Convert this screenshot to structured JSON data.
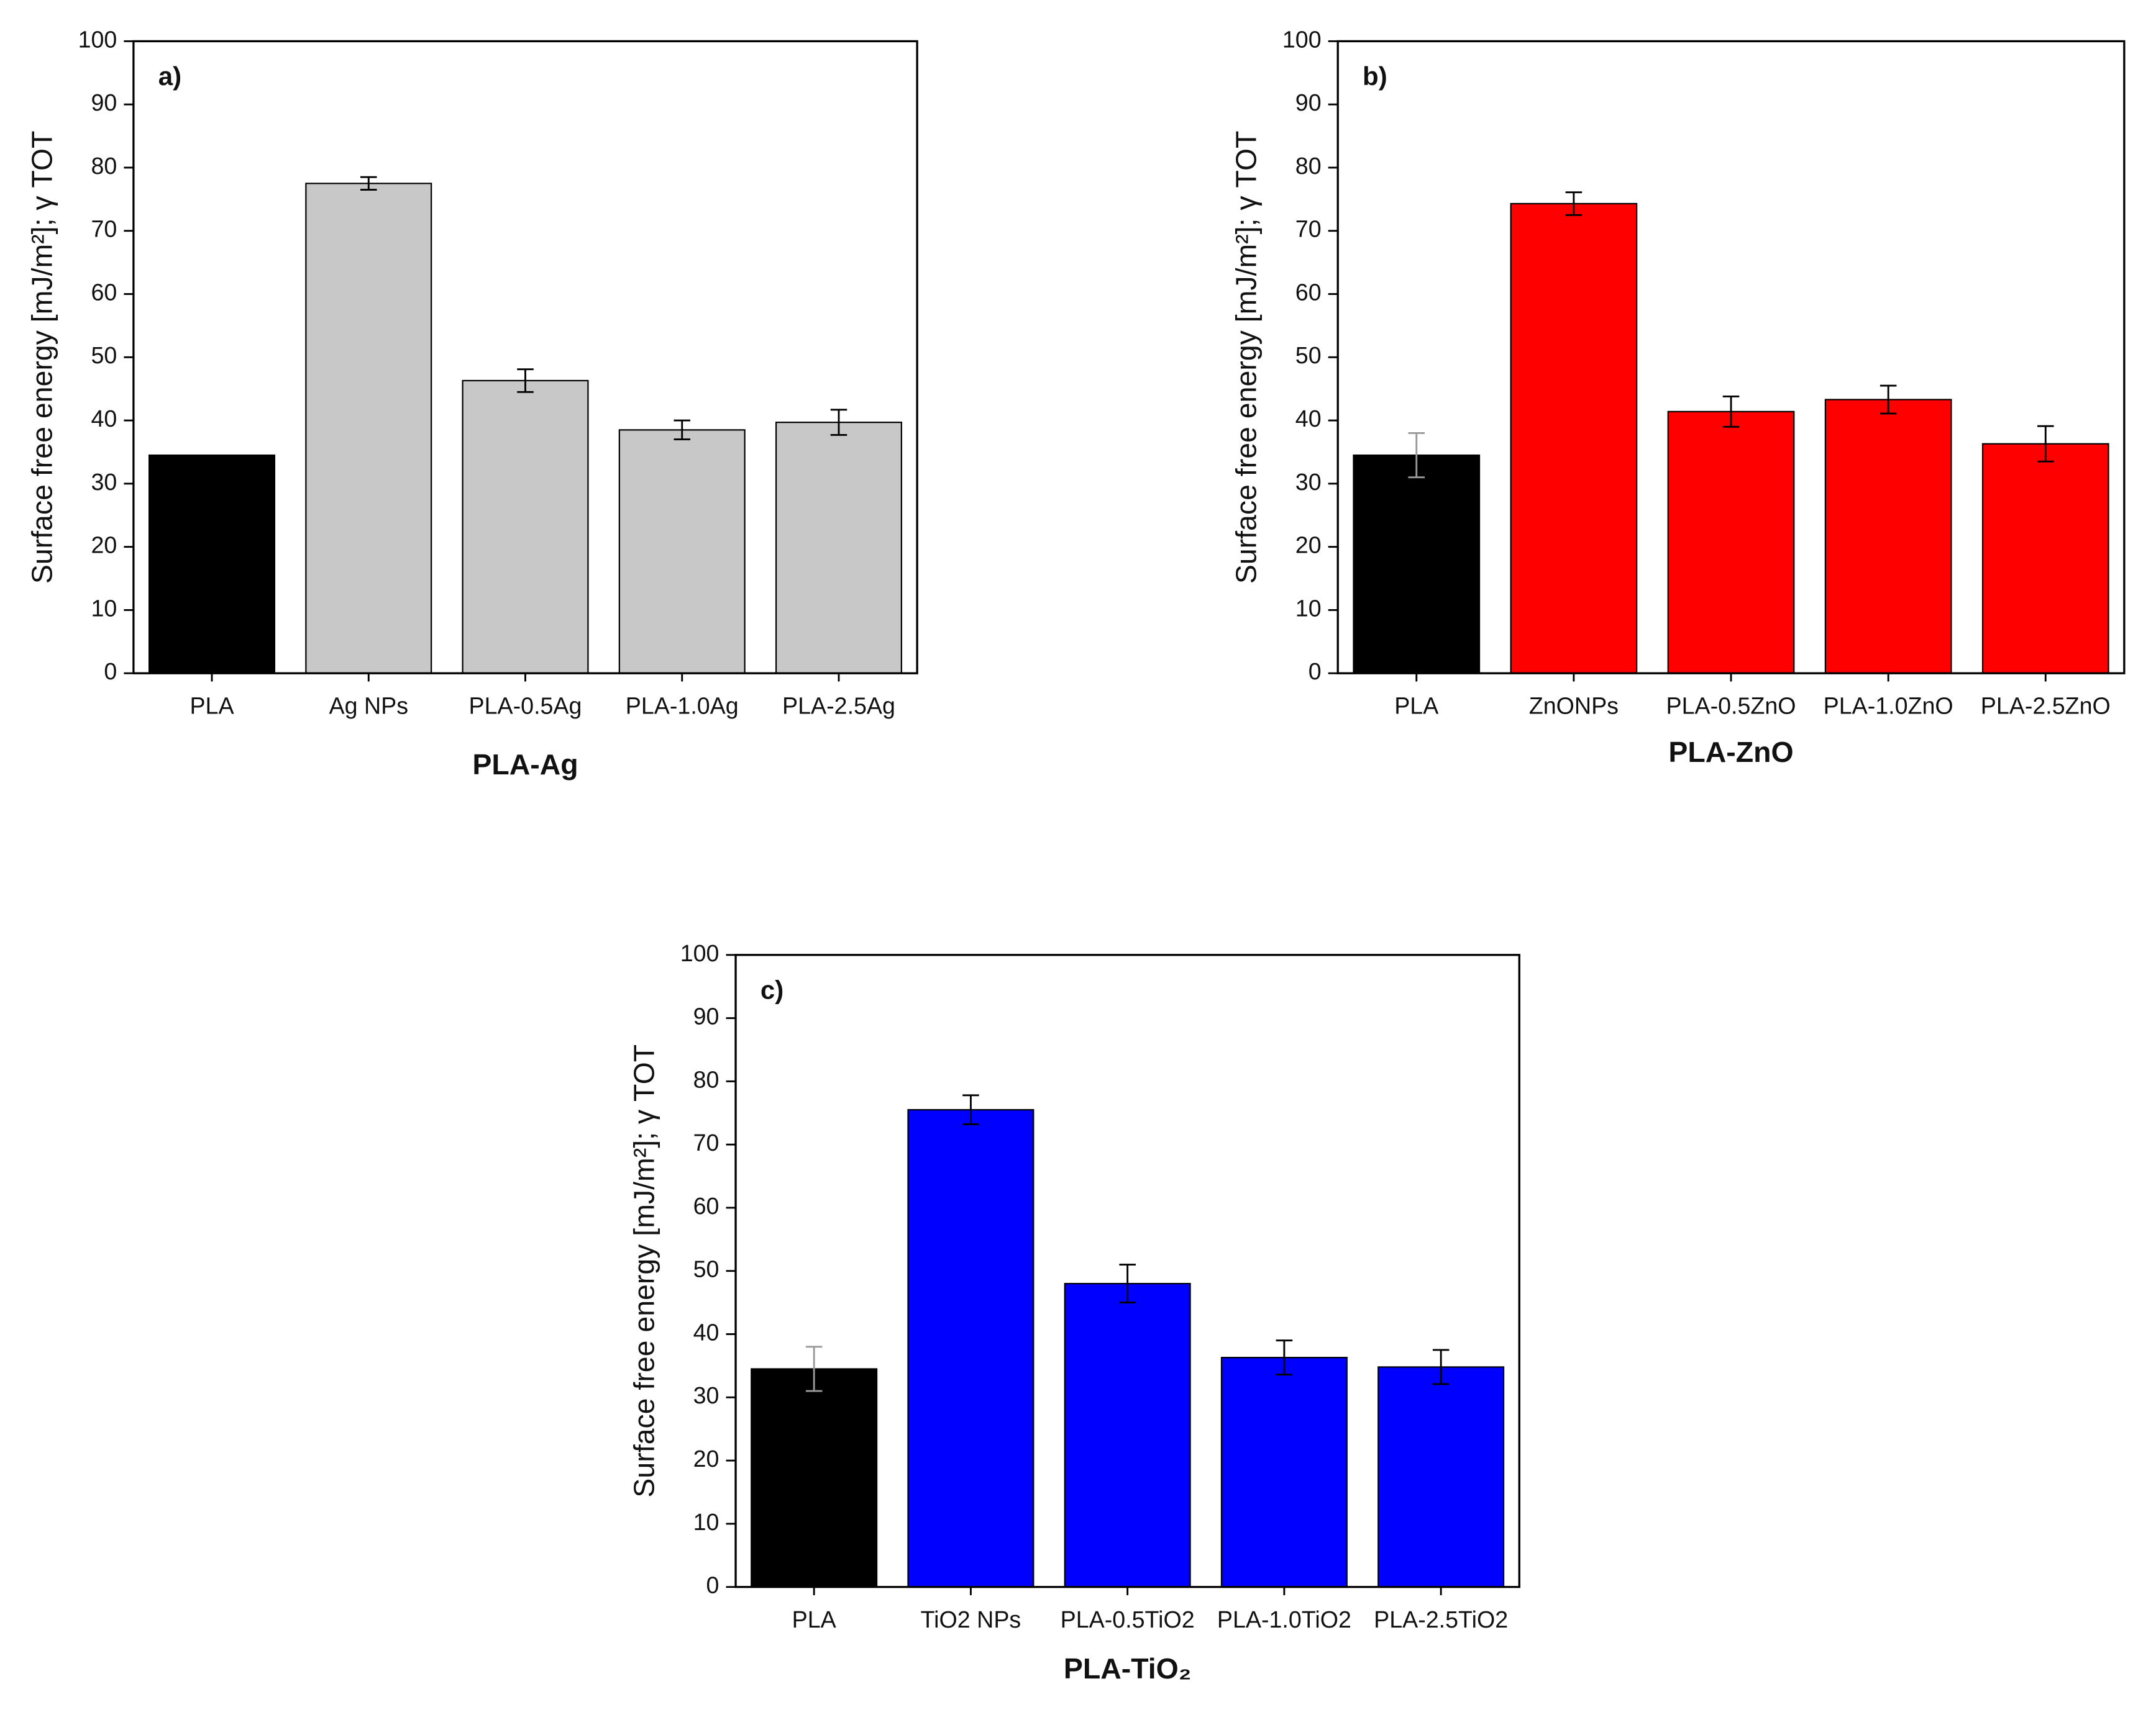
{
  "chart_data": [
    {
      "type": "bar",
      "panel_label": "a)",
      "x_label": "PLA-Ag",
      "y_label": "Surface free energy [mJ/m²]; γ TOT",
      "categories": [
        "PLA",
        "Ag NPs",
        "PLA-0.5Ag",
        "PLA-1.0Ag",
        "PLA-2.5Ag"
      ],
      "values": [
        34.5,
        77.5,
        46.3,
        38.5,
        39.7
      ],
      "errors": [
        null,
        1.0,
        1.8,
        1.5,
        2.0
      ],
      "colors": [
        "#000000",
        "#c8c8c8",
        "#c8c8c8",
        "#c8c8c8",
        "#c8c8c8"
      ],
      "ylim": [
        0,
        100
      ],
      "yticks": [
        0,
        10,
        20,
        30,
        40,
        50,
        60,
        70,
        80,
        90,
        100
      ]
    },
    {
      "type": "bar",
      "panel_label": "b)",
      "x_label": "PLA-ZnO",
      "y_label": "Surface free energy [mJ/m²]; γ TOT",
      "categories": [
        "PLA",
        "ZnONPs",
        "PLA-0.5ZnO",
        "PLA-1.0ZnO",
        "PLA-2.5ZnO"
      ],
      "values": [
        34.5,
        74.3,
        41.4,
        43.3,
        36.3
      ],
      "errors": [
        3.5,
        1.8,
        2.4,
        2.2,
        2.8
      ],
      "colors": [
        "#000000",
        "#ff0000",
        "#ff0000",
        "#ff0000",
        "#ff0000"
      ],
      "ylim": [
        0,
        100
      ],
      "yticks": [
        0,
        10,
        20,
        30,
        40,
        50,
        60,
        70,
        80,
        90,
        100
      ]
    },
    {
      "type": "bar",
      "panel_label": "c)",
      "x_label": "PLA-TiO₂",
      "y_label": "Surface free energy [mJ/m²]; γ TOT",
      "categories": [
        "PLA",
        "TiO2 NPs",
        "PLA-0.5TiO2",
        "PLA-1.0TiO2",
        "PLA-2.5TiO2"
      ],
      "values": [
        34.5,
        75.5,
        48.0,
        36.3,
        34.8
      ],
      "errors": [
        3.5,
        2.3,
        3.0,
        2.7,
        2.7
      ],
      "colors": [
        "#000000",
        "#0000ff",
        "#0000ff",
        "#0000ff",
        "#0000ff"
      ],
      "ylim": [
        0,
        100
      ],
      "yticks": [
        0,
        10,
        20,
        30,
        40,
        50,
        60,
        70,
        80,
        90,
        100
      ]
    }
  ]
}
